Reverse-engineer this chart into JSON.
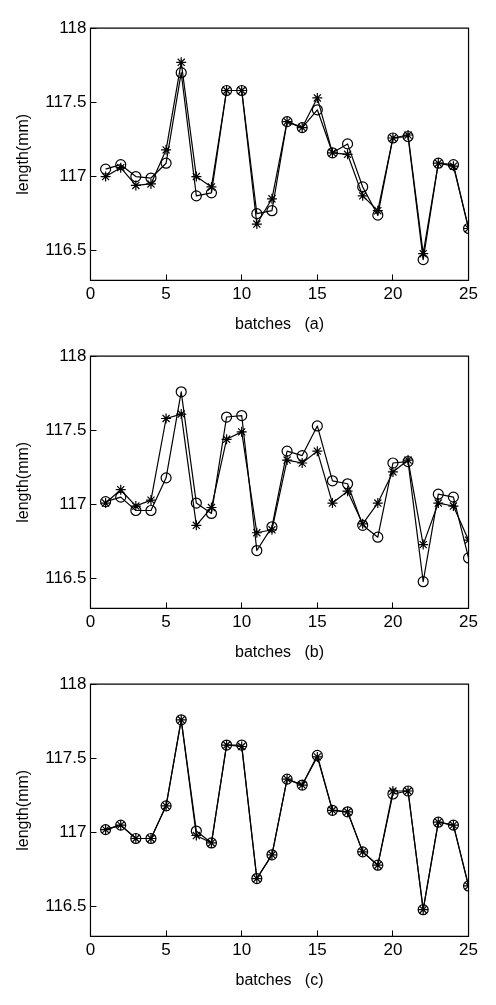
{
  "chart_data": [
    {
      "type": "line",
      "xlabel": "batches   (a)",
      "ylabel": "length(mm)",
      "x": [
        1,
        2,
        3,
        4,
        5,
        6,
        7,
        8,
        9,
        10,
        11,
        12,
        13,
        14,
        15,
        16,
        17,
        18,
        19,
        20,
        21,
        22,
        23,
        24,
        25
      ],
      "xlim": [
        0,
        25
      ],
      "xticks": [
        0,
        5,
        10,
        15,
        20,
        25
      ],
      "ylim": [
        116.3,
        118
      ],
      "yticks": [
        116.5,
        117,
        117.5,
        118
      ],
      "grid": false,
      "legend": false,
      "line_style": "solid",
      "series": [
        {
          "color": "#000000",
          "marker": "circle",
          "values": [
            117.05,
            117.08,
            117.0,
            116.99,
            117.09,
            117.7,
            116.87,
            116.89,
            117.58,
            117.58,
            116.75,
            116.77,
            117.37,
            117.33,
            117.45,
            117.16,
            117.22,
            116.93,
            116.74,
            117.26,
            117.27,
            116.44,
            117.09,
            117.08,
            116.65
          ]
        },
        {
          "color": "#000000",
          "marker": "cross",
          "values": [
            117.0,
            117.06,
            116.94,
            116.95,
            117.18,
            117.77,
            117.0,
            116.93,
            117.58,
            117.58,
            116.68,
            116.85,
            117.37,
            117.33,
            117.53,
            117.16,
            117.15,
            116.87,
            116.77,
            117.26,
            117.28,
            116.48,
            117.09,
            117.07,
            116.65
          ]
        }
      ]
    },
    {
      "type": "line",
      "xlabel": "batches   (b)",
      "ylabel": "length(mm)",
      "x": [
        1,
        2,
        3,
        4,
        5,
        6,
        7,
        8,
        9,
        10,
        11,
        12,
        13,
        14,
        15,
        16,
        17,
        18,
        19,
        20,
        21,
        22,
        23,
        24,
        25
      ],
      "xlim": [
        0,
        25
      ],
      "xticks": [
        0,
        5,
        10,
        15,
        20,
        25
      ],
      "ylim": [
        116.3,
        118
      ],
      "yticks": [
        116.5,
        117,
        117.5,
        118
      ],
      "grid": false,
      "legend": false,
      "line_style": "solid",
      "series": [
        {
          "color": "#000000",
          "marker": "circle",
          "values": [
            117.02,
            117.05,
            116.96,
            116.96,
            117.18,
            117.76,
            117.01,
            116.94,
            117.59,
            117.6,
            116.69,
            116.85,
            117.36,
            117.33,
            117.53,
            117.16,
            117.14,
            116.86,
            116.78,
            117.28,
            117.29,
            116.48,
            117.07,
            117.05,
            116.64
          ]
        },
        {
          "color": "#000000",
          "marker": "cross",
          "values": [
            117.01,
            117.1,
            116.99,
            117.03,
            117.58,
            117.61,
            116.86,
            116.98,
            117.44,
            117.49,
            116.81,
            116.83,
            117.3,
            117.28,
            117.36,
            117.01,
            117.09,
            116.87,
            117.01,
            117.22,
            117.3,
            116.73,
            117.01,
            116.99,
            116.76
          ]
        }
      ]
    },
    {
      "type": "line",
      "xlabel": "batches   (c)",
      "ylabel": "length(mm)",
      "x": [
        1,
        2,
        3,
        4,
        5,
        6,
        7,
        8,
        9,
        10,
        11,
        12,
        13,
        14,
        15,
        16,
        17,
        18,
        19,
        20,
        21,
        22,
        23,
        24,
        25
      ],
      "xlim": [
        0,
        25
      ],
      "xticks": [
        0,
        5,
        10,
        15,
        20,
        25
      ],
      "ylim": [
        116.3,
        118
      ],
      "yticks": [
        116.5,
        117,
        117.5,
        118
      ],
      "grid": false,
      "legend": false,
      "line_style": "solid",
      "series": [
        {
          "color": "#000000",
          "marker": "circle",
          "values": [
            117.02,
            117.05,
            116.96,
            116.96,
            117.18,
            117.76,
            117.01,
            116.93,
            117.59,
            117.59,
            116.69,
            116.85,
            117.36,
            117.32,
            117.52,
            117.15,
            117.14,
            116.87,
            116.78,
            117.26,
            117.28,
            116.48,
            117.07,
            117.05,
            116.64
          ]
        },
        {
          "color": "#000000",
          "marker": "cross",
          "values": [
            117.02,
            117.05,
            116.96,
            116.96,
            117.18,
            117.76,
            116.98,
            116.93,
            117.59,
            117.58,
            116.69,
            116.85,
            117.36,
            117.32,
            117.51,
            117.15,
            117.14,
            116.87,
            116.78,
            117.28,
            117.28,
            116.48,
            117.07,
            117.05,
            116.64
          ]
        }
      ]
    }
  ]
}
